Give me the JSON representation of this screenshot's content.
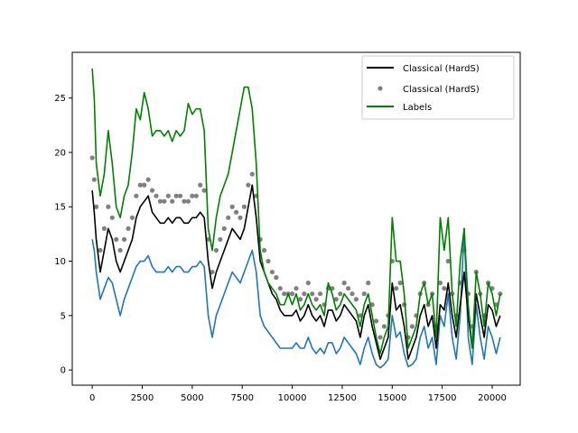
{
  "chart_data": {
    "type": "line",
    "title": "",
    "xlabel": "",
    "ylabel": "",
    "xlim": [
      -1000,
      21400
    ],
    "ylim": [
      -1.4,
      29.2
    ],
    "x_ticks": [
      0,
      2500,
      5000,
      7500,
      10000,
      12500,
      15000,
      17500,
      20000
    ],
    "y_ticks": [
      0,
      5,
      10,
      15,
      20,
      25
    ],
    "x_tick_labels": [
      "0",
      "2500",
      "5000",
      "7500",
      "10000",
      "12500",
      "15000",
      "17500",
      "20000"
    ],
    "y_tick_labels": [
      "0",
      "5",
      "10",
      "15",
      "20",
      "25"
    ],
    "grid": false,
    "legend_position": "top-right",
    "legend": [
      "Classical (HardS)",
      "Classical (HardS)",
      "Labels"
    ],
    "series": [
      {
        "name": "Classical (HardS)",
        "style": "line",
        "color": "#000000",
        "x": [
          0,
          100,
          200,
          400,
          600,
          800,
          1000,
          1200,
          1400,
          1600,
          1800,
          2000,
          2200,
          2400,
          2600,
          2800,
          3000,
          3200,
          3400,
          3600,
          3800,
          4000,
          4200,
          4400,
          4600,
          4800,
          5000,
          5200,
          5400,
          5600,
          5800,
          6000,
          6200,
          6400,
          6600,
          6800,
          7000,
          7200,
          7400,
          7600,
          7800,
          8000,
          8200,
          8400,
          8600,
          8800,
          9000,
          9200,
          9400,
          9600,
          9800,
          10000,
          10200,
          10400,
          10600,
          10800,
          11000,
          11200,
          11400,
          11600,
          11800,
          12000,
          12200,
          12400,
          12600,
          12800,
          13000,
          13200,
          13400,
          13600,
          13800,
          14000,
          14200,
          14400,
          14600,
          14800,
          15000,
          15200,
          15400,
          15600,
          15800,
          16000,
          16200,
          16400,
          16600,
          16800,
          17000,
          17200,
          17400,
          17600,
          17800,
          18000,
          18200,
          18400,
          18600,
          18800,
          19000,
          19200,
          19400,
          19600,
          19800,
          20000,
          20200,
          20400
        ],
        "values": [
          16.5,
          14.5,
          12,
          9,
          11,
          13,
          12,
          10,
          9,
          10,
          11,
          12,
          14,
          15,
          15.5,
          16,
          14.5,
          14,
          13.5,
          13.5,
          14,
          13.5,
          14,
          14,
          13.5,
          13.5,
          14,
          14,
          14.5,
          14,
          10,
          7.5,
          9,
          10,
          11,
          12,
          13,
          12.5,
          12,
          13,
          15,
          17,
          14,
          10,
          9,
          8,
          7,
          6.5,
          5.5,
          5,
          5,
          5,
          5.5,
          4.5,
          5,
          6,
          5,
          4.5,
          5,
          4,
          5.5,
          5.5,
          4.5,
          5,
          6,
          5.5,
          5,
          4.5,
          3,
          5,
          6,
          4,
          2.5,
          1,
          2,
          3,
          8,
          5.5,
          6,
          4,
          1,
          2,
          3,
          5,
          6,
          4,
          5,
          2,
          6,
          5.5,
          8,
          5,
          3,
          6,
          9,
          5,
          2,
          7,
          5,
          3,
          6,
          5.5,
          4,
          5
        ]
      },
      {
        "name": "Classical (HardS)",
        "style": "scatter",
        "color": "#808080",
        "x": [
          0,
          100,
          200,
          400,
          600,
          800,
          1000,
          1200,
          1400,
          1600,
          1800,
          2000,
          2200,
          2400,
          2600,
          2800,
          3000,
          3200,
          3400,
          3600,
          3800,
          4000,
          4200,
          4400,
          4600,
          4800,
          5000,
          5200,
          5400,
          5600,
          5800,
          6000,
          6200,
          6400,
          6600,
          6800,
          7000,
          7200,
          7400,
          7600,
          7800,
          8000,
          8200,
          8400,
          8600,
          8800,
          9000,
          9200,
          9400,
          9600,
          9800,
          10000,
          10200,
          10400,
          10600,
          10800,
          11000,
          11200,
          11400,
          11600,
          11800,
          12000,
          12200,
          12400,
          12600,
          12800,
          13000,
          13200,
          13400,
          13600,
          13800,
          14000,
          14200,
          14400,
          14600,
          14800,
          15000,
          15200,
          15400,
          15600,
          15800,
          16000,
          16200,
          16400,
          16600,
          16800,
          17000,
          17200,
          17400,
          17600,
          17800,
          18000,
          18200,
          18400,
          18600,
          18800,
          19000,
          19200,
          19400,
          19600,
          19800,
          20000,
          20200,
          20400
        ],
        "values": [
          19.5,
          17.5,
          15,
          11,
          13,
          15,
          14,
          12,
          11,
          12,
          13,
          14,
          16,
          17,
          17,
          17.5,
          16.5,
          16,
          15.5,
          15.5,
          16,
          15.5,
          16,
          16,
          15.5,
          15.5,
          16,
          16,
          17,
          16.5,
          12,
          9,
          11,
          12,
          13,
          14,
          15,
          14.5,
          14,
          15,
          17,
          18,
          16,
          12,
          11,
          10,
          9,
          8.5,
          7.5,
          7,
          7,
          7,
          7.5,
          6.5,
          7,
          8,
          7,
          6.5,
          7,
          6,
          7.5,
          7.5,
          6.5,
          7,
          8,
          7.5,
          7,
          6.5,
          5,
          7,
          8,
          6,
          4.5,
          3,
          4,
          5,
          10,
          7.5,
          8,
          6,
          3,
          4,
          5,
          7,
          8,
          6,
          7,
          4,
          8,
          7.5,
          10,
          7,
          5,
          8,
          11,
          7,
          4,
          9,
          7,
          5,
          8,
          7.5,
          6,
          7
        ]
      },
      {
        "name": "",
        "style": "line",
        "color": "#1f77b4",
        "x": [
          0,
          100,
          200,
          400,
          600,
          800,
          1000,
          1200,
          1400,
          1600,
          1800,
          2000,
          2200,
          2400,
          2600,
          2800,
          3000,
          3200,
          3400,
          3600,
          3800,
          4000,
          4200,
          4400,
          4600,
          4800,
          5000,
          5200,
          5400,
          5600,
          5800,
          6000,
          6200,
          6400,
          6600,
          6800,
          7000,
          7200,
          7400,
          7600,
          7800,
          8000,
          8200,
          8400,
          8600,
          8800,
          9000,
          9200,
          9400,
          9600,
          9800,
          10000,
          10200,
          10400,
          10600,
          10800,
          11000,
          11200,
          11400,
          11600,
          11800,
          12000,
          12200,
          12400,
          12600,
          12800,
          13000,
          13200,
          13400,
          13600,
          13800,
          14000,
          14200,
          14400,
          14600,
          14800,
          15000,
          15200,
          15400,
          15600,
          15800,
          16000,
          16200,
          16400,
          16600,
          16800,
          17000,
          17200,
          17400,
          17600,
          17800,
          18000,
          18200,
          18400,
          18600,
          18800,
          19000,
          19200,
          19400,
          19600,
          19800,
          20000,
          20200,
          20400
        ],
        "values": [
          12,
          11,
          9,
          6.5,
          7.5,
          8.5,
          8,
          6.5,
          5,
          6.5,
          7.5,
          8.5,
          9.5,
          10,
          10,
          10.5,
          9.5,
          9,
          9,
          9,
          9.5,
          9,
          9.5,
          9.5,
          9,
          9,
          9.5,
          9.5,
          10,
          9.5,
          5,
          3,
          5,
          6,
          7,
          8,
          9,
          8.5,
          8,
          9,
          10,
          11,
          9,
          5,
          4,
          3.5,
          3,
          2.5,
          2,
          2,
          2,
          2,
          2.5,
          2,
          2,
          3,
          2,
          1.5,
          2,
          1.5,
          2.5,
          2.5,
          1.5,
          2,
          3,
          2.5,
          2,
          1.5,
          0.5,
          2,
          3,
          1.5,
          0.5,
          0.2,
          0.5,
          1,
          5,
          3,
          3.5,
          1.5,
          0.3,
          0.5,
          1,
          3,
          4,
          2,
          3,
          0.5,
          5,
          4,
          7,
          3,
          1,
          5,
          13,
          3,
          0.5,
          6,
          3,
          1,
          4,
          3,
          1.5,
          3
        ]
      },
      {
        "name": "Labels",
        "style": "line",
        "color": "#008000",
        "x": [
          0,
          100,
          200,
          400,
          600,
          800,
          1000,
          1200,
          1400,
          1600,
          1800,
          2000,
          2200,
          2400,
          2600,
          2800,
          3000,
          3200,
          3400,
          3600,
          3800,
          4000,
          4200,
          4400,
          4600,
          4800,
          5000,
          5200,
          5400,
          5600,
          5800,
          6000,
          6200,
          6400,
          6600,
          6800,
          7000,
          7200,
          7400,
          7600,
          7800,
          8000,
          8200,
          8400,
          8600,
          8800,
          9000,
          9200,
          9400,
          9600,
          9800,
          10000,
          10200,
          10400,
          10600,
          10800,
          11000,
          11200,
          11400,
          11600,
          11800,
          12000,
          12200,
          12400,
          12600,
          12800,
          13000,
          13200,
          13400,
          13600,
          13800,
          14000,
          14200,
          14400,
          14600,
          14800,
          15000,
          15200,
          15400,
          15600,
          15800,
          16000,
          16200,
          16400,
          16600,
          16800,
          17000,
          17200,
          17400,
          17600,
          17800,
          18000,
          18200,
          18400,
          18600,
          18800,
          19000,
          19200,
          19400,
          19600,
          19800,
          20000,
          20200,
          20400
        ],
        "values": [
          27.7,
          25,
          19,
          16,
          18,
          22,
          19,
          15,
          14,
          16,
          17,
          20,
          24,
          23,
          25.5,
          24,
          21.5,
          22,
          22,
          21.5,
          22,
          21,
          22,
          21.5,
          22,
          24.5,
          23.5,
          24,
          24,
          22,
          13,
          11,
          14,
          16,
          17,
          18,
          20,
          22,
          24,
          26,
          26,
          24,
          19,
          11,
          9,
          8,
          7.5,
          7,
          6,
          6,
          7,
          6,
          7,
          5.5,
          6,
          7,
          6,
          5.5,
          6,
          5,
          8,
          7,
          5.5,
          6,
          7,
          6.5,
          6,
          5.5,
          4,
          6,
          7,
          5,
          3,
          1.5,
          3,
          4,
          14,
          10,
          10,
          7,
          2,
          3,
          4,
          7,
          8,
          6,
          7,
          3,
          14,
          11,
          14,
          7,
          4,
          10,
          13,
          6,
          2,
          9,
          7,
          4,
          8,
          7,
          5,
          7
        ]
      }
    ]
  }
}
